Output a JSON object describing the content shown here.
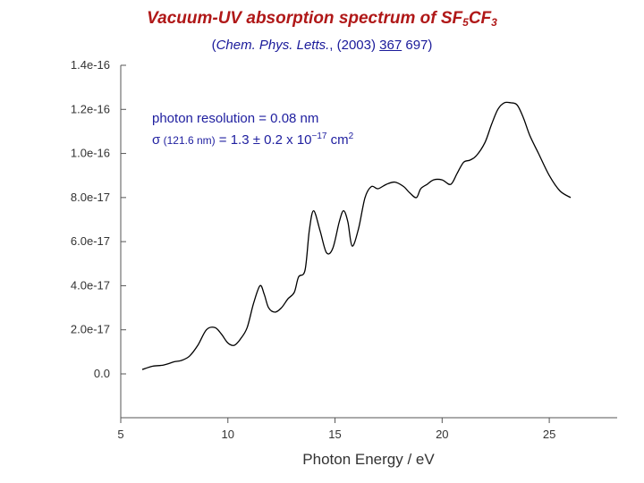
{
  "header": {
    "title_main": "Vacuum-UV absorption spectrum of SF",
    "title_sub1": "5",
    "title_mid": "CF",
    "title_sub2": "3",
    "citation_pre": "(",
    "citation_journal": "Chem. Phys. Letts.",
    "citation_mid": ", (2003)  ",
    "citation_volume": "367",
    "citation_page": "  697)"
  },
  "annotations": {
    "line1": "photon resolution = 0.08 nm",
    "line2_symbol": "σ",
    "line2_small": " (121.6 nm)",
    "line2_value": " = 1.3 ± 0.2 x 10",
    "line2_exp": "−17",
    "line2_unit": " cm",
    "line2_unit_exp": "2"
  },
  "colors": {
    "title": "#b01818",
    "citation": "#1a1a9a",
    "annotation": "#2020a0",
    "curve": "#000000",
    "axis": "#555555"
  },
  "chart_data": {
    "type": "line",
    "title": "Vacuum-UV absorption spectrum of SF5CF3",
    "xlabel": "Photon Energy / eV",
    "ylabel": "",
    "xlim": [
      5,
      27
    ],
    "ylim": [
      0,
      1.4e-16
    ],
    "xticks": [
      5,
      10,
      15,
      20,
      25
    ],
    "xtick_labels": [
      "5",
      "10",
      "15",
      "20",
      "25"
    ],
    "yticks": [
      0,
      2e-17,
      4e-17,
      6e-17,
      8e-17,
      1e-16,
      1.2e-16,
      1.4e-16
    ],
    "ytick_labels": [
      "0.0",
      "2.0e-17",
      "4.0e-17",
      "6.0e-17",
      "8.0e-17",
      "1.0e-16",
      "1.2e-16",
      "1.4e-16"
    ],
    "grid": false,
    "series": [
      {
        "x": [
          6.0,
          6.5,
          7.0,
          7.5,
          7.8,
          8.2,
          8.6,
          9.0,
          9.4,
          9.7,
          10.0,
          10.3,
          10.6,
          10.9,
          11.2,
          11.5,
          11.7,
          11.9,
          12.2,
          12.5,
          12.8,
          13.1,
          13.3,
          13.6,
          13.8,
          14.0,
          14.3,
          14.6,
          14.9,
          15.2,
          15.4,
          15.6,
          15.8,
          16.1,
          16.4,
          16.7,
          17.0,
          17.4,
          17.8,
          18.2,
          18.5,
          18.8,
          19.0,
          19.3,
          19.6,
          20.0,
          20.4,
          20.7,
          21.0,
          21.3,
          21.6,
          22.0,
          22.3,
          22.6,
          22.9,
          23.2,
          23.5,
          23.8,
          24.1,
          24.5,
          25.0,
          25.5,
          26.0
        ],
        "y": [
          2e-18,
          3.5e-18,
          4e-18,
          5.5e-18,
          6e-18,
          8e-18,
          1.3e-17,
          2e-17,
          2.1e-17,
          1.8e-17,
          1.4e-17,
          1.3e-17,
          1.6e-17,
          2.1e-17,
          3.2e-17,
          4e-17,
          3.6e-17,
          3e-17,
          2.8e-17,
          3e-17,
          3.4e-17,
          3.7e-17,
          4.4e-17,
          4.7e-17,
          6.5e-17,
          7.4e-17,
          6.5e-17,
          5.5e-17,
          5.7e-17,
          6.9e-17,
          7.4e-17,
          6.9e-17,
          5.8e-17,
          6.6e-17,
          8e-17,
          8.5e-17,
          8.4e-17,
          8.6e-17,
          8.7e-17,
          8.5e-17,
          8.2e-17,
          8e-17,
          8.4e-17,
          8.6e-17,
          8.8e-17,
          8.8e-17,
          8.6e-17,
          9.1e-17,
          9.6e-17,
          9.7e-17,
          9.9e-17,
          1.05e-16,
          1.13e-16,
          1.2e-16,
          1.23e-16,
          1.23e-16,
          1.22e-16,
          1.16e-16,
          1.08e-16,
          1e-16,
          9e-17,
          8.3e-17,
          8e-17
        ]
      }
    ]
  }
}
